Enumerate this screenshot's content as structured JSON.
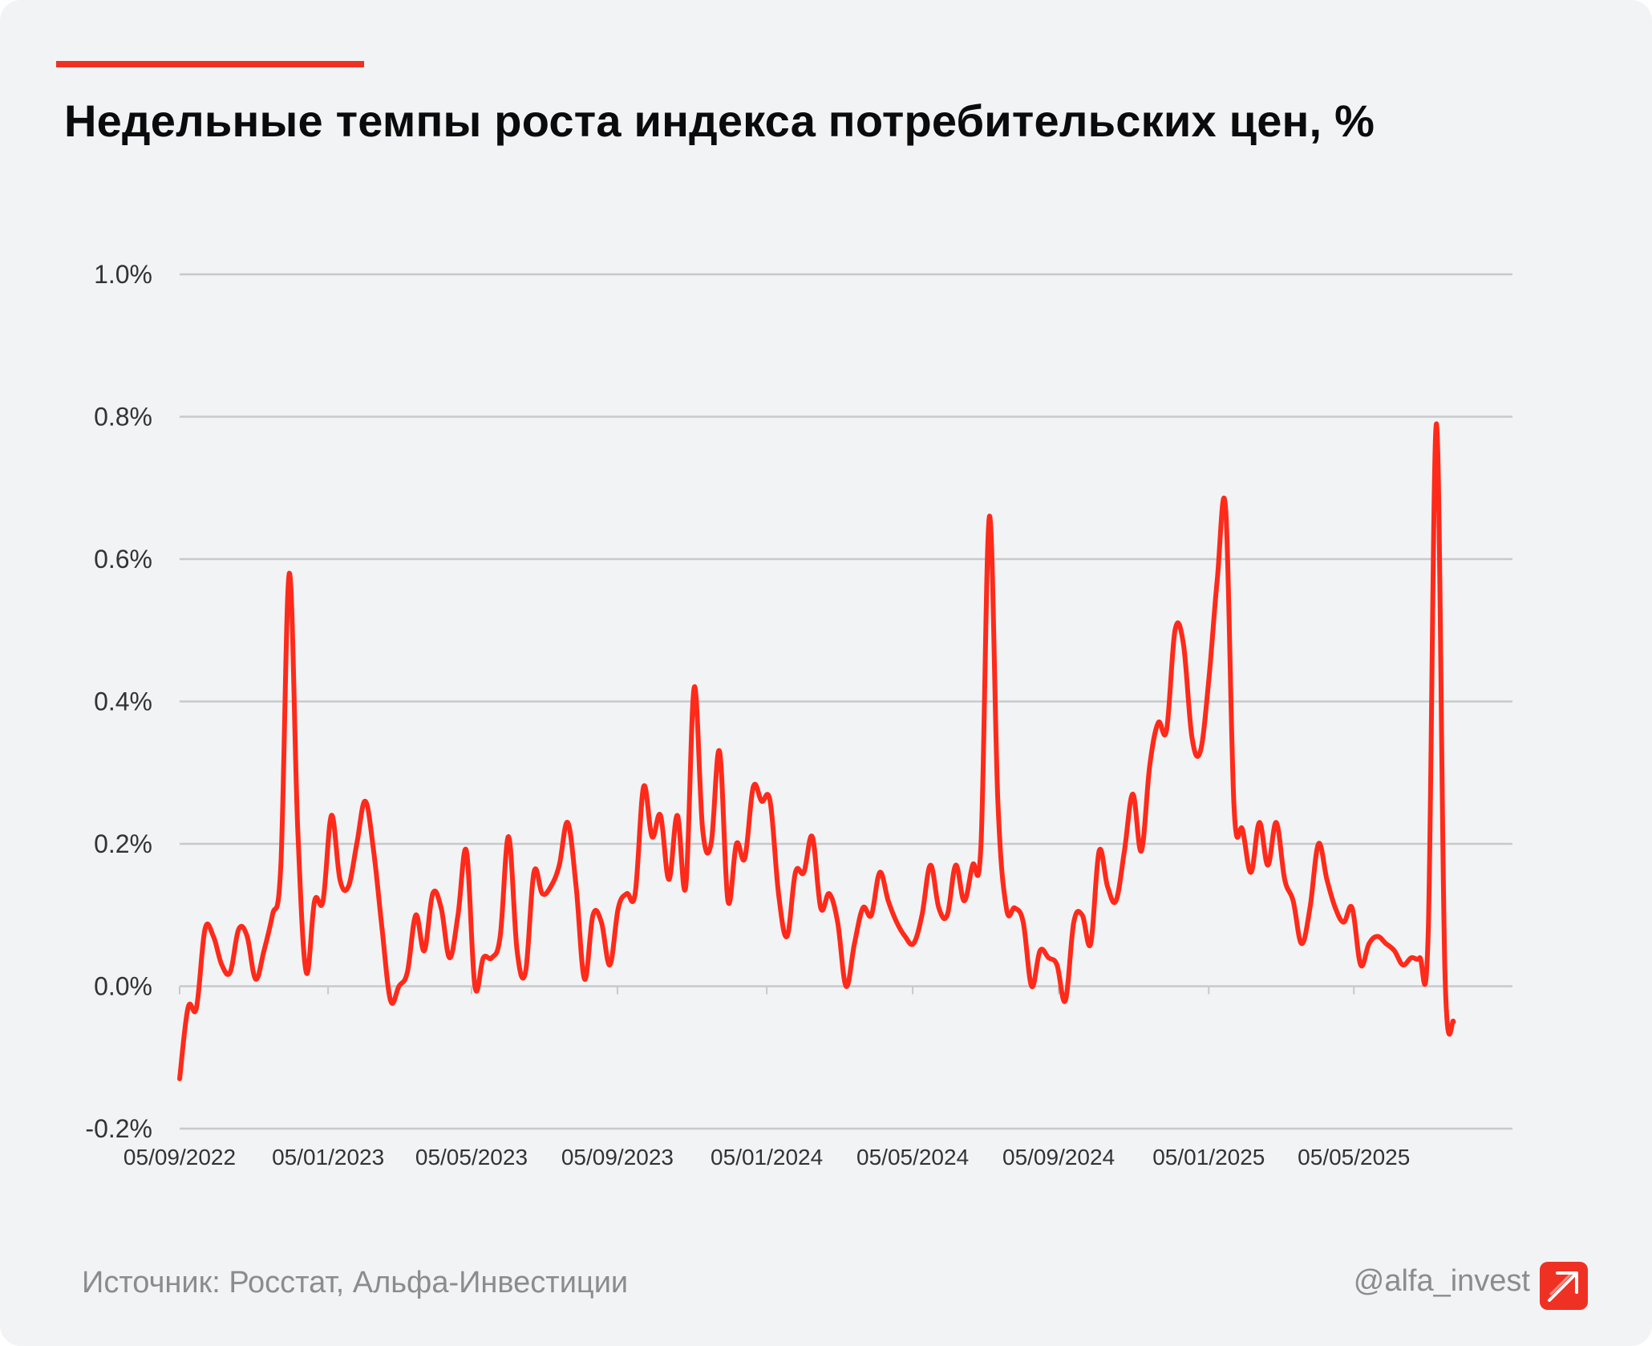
{
  "title": "Недельные темпы роста индекса потребительских цен, %",
  "footer": {
    "source": "Источник: Росстат, Альфа-Инвестиции",
    "handle": "@alfa_invest"
  },
  "colors": {
    "accent": "#ef3124",
    "line": "#ff2a1a",
    "grid": "#c8c9cc",
    "background": "#f2f3f5"
  },
  "icons": {
    "logo": "alfa-arrow-logo-icon"
  },
  "chart_data": {
    "type": "line",
    "title": "Недельные темпы роста индекса потребительских цен, %",
    "xlabel": "",
    "ylabel": "",
    "ylim": [
      -0.2,
      1.0
    ],
    "y_ticks": [
      -0.2,
      0.0,
      0.2,
      0.4,
      0.6,
      0.8,
      1.0
    ],
    "y_tick_labels": [
      "-0.2%",
      "0.0%",
      "0.2%",
      "0.4%",
      "0.6%",
      "0.8%",
      "1.0%"
    ],
    "x_range": [
      0,
      158
    ],
    "x_ticks": [
      0,
      17.6,
      34.6,
      51.9,
      69.6,
      86.9,
      104.2,
      122.0,
      139.2
    ],
    "x_tick_labels": [
      "05/09/2022",
      "05/01/2023",
      "05/05/2023",
      "05/09/2023",
      "05/01/2024",
      "05/05/2024",
      "05/09/2024",
      "05/01/2025",
      "05/05/2025"
    ],
    "grid": true,
    "legend": "none",
    "x_unit": "weeks since 05/09/2022",
    "series": [
      {
        "name": "",
        "values": [
          -0.13,
          -0.03,
          -0.03,
          0.08,
          0.07,
          0.03,
          0.02,
          0.08,
          0.07,
          0.01,
          0.05,
          0.1,
          0.17,
          0.58,
          0.22,
          0.02,
          0.12,
          0.12,
          0.24,
          0.15,
          0.14,
          0.2,
          0.26,
          0.19,
          0.08,
          -0.02,
          0.0,
          0.02,
          0.1,
          0.05,
          0.13,
          0.11,
          0.04,
          0.1,
          0.19,
          0.0,
          0.04,
          0.04,
          0.07,
          0.21,
          0.05,
          0.02,
          0.16,
          0.13,
          0.14,
          0.17,
          0.23,
          0.14,
          0.01,
          0.1,
          0.09,
          0.03,
          0.11,
          0.13,
          0.13,
          0.28,
          0.21,
          0.24,
          0.15,
          0.24,
          0.14,
          0.42,
          0.22,
          0.2,
          0.33,
          0.12,
          0.2,
          0.18,
          0.28,
          0.26,
          0.26,
          0.13,
          0.07,
          0.16,
          0.16,
          0.21,
          0.11,
          0.13,
          0.09,
          0.0,
          0.06,
          0.11,
          0.1,
          0.16,
          0.12,
          0.09,
          0.07,
          0.06,
          0.1,
          0.17,
          0.11,
          0.1,
          0.17,
          0.12,
          0.17,
          0.2,
          0.66,
          0.26,
          0.11,
          0.11,
          0.09,
          0.0,
          0.05,
          0.04,
          0.03,
          -0.02,
          0.09,
          0.1,
          0.06,
          0.19,
          0.14,
          0.12,
          0.19,
          0.27,
          0.19,
          0.31,
          0.37,
          0.36,
          0.5,
          0.48,
          0.35,
          0.33,
          0.43,
          0.57,
          0.67,
          0.25,
          0.22,
          0.16,
          0.23,
          0.17,
          0.23,
          0.15,
          0.12,
          0.06,
          0.11,
          0.2,
          0.15,
          0.11,
          0.09,
          0.11,
          0.03,
          0.06,
          0.07,
          0.06,
          0.05,
          0.03,
          0.04,
          0.04,
          0.07,
          0.79,
          0.02,
          -0.05
        ]
      }
    ]
  }
}
